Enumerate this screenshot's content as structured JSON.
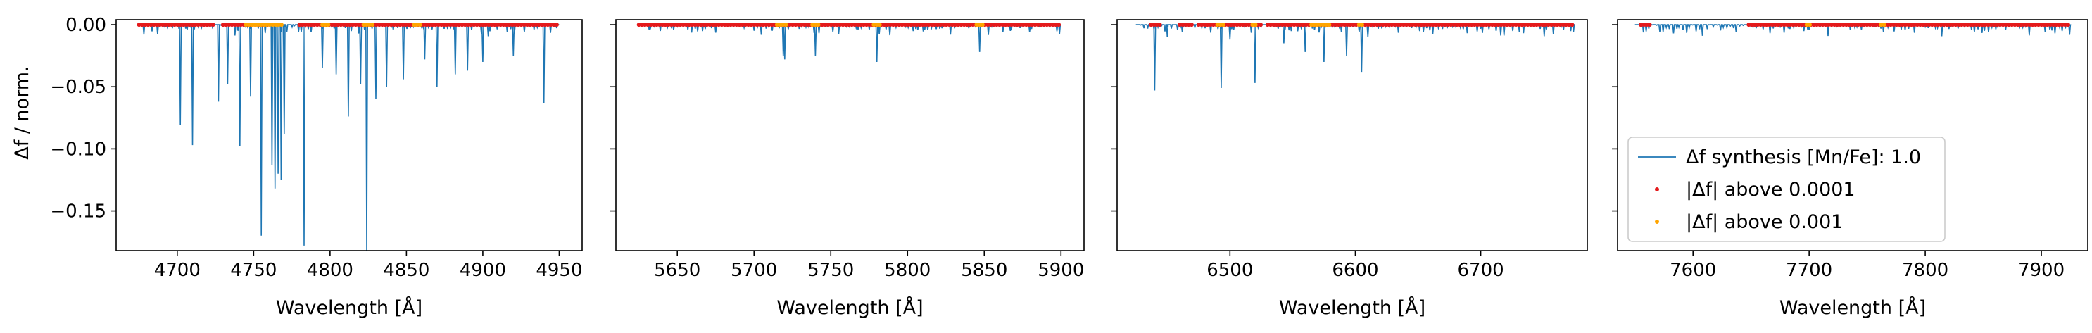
{
  "figure": {
    "ylabel": "Δf / norm.",
    "xlabel": "Wavelength [Å]"
  },
  "colors": {
    "synthesis_line": "#1f77b4",
    "above_0_0001": "#e41a1c",
    "above_0_001": "#ffa500",
    "axes": "#000000"
  },
  "legend": {
    "entries": [
      {
        "label": "Δf synthesis [Mn/Fe]: 1.0",
        "marker": "line",
        "color": "#1f77b4"
      },
      {
        "label": "|Δf| above 0.0001",
        "marker": "dot",
        "color": "#e41a1c"
      },
      {
        "label": "|Δf| above 0.001",
        "marker": "dot",
        "color": "#ffa500"
      }
    ],
    "placement": "lower-left of panel 4"
  },
  "chart_data": [
    {
      "type": "line",
      "panel": 1,
      "xlabel": "Wavelength [Å]",
      "ylabel": "Δf / norm.",
      "xlim": [
        4660,
        4965
      ],
      "ylim": [
        -0.182,
        0.004
      ],
      "xticks": [
        4700,
        4750,
        4800,
        4850,
        4900,
        4950
      ],
      "yticks": [
        0.0,
        -0.05,
        -0.1,
        -0.15
      ],
      "ytick_labels": [
        "0.00",
        "−0.05",
        "−0.10",
        "−0.15"
      ],
      "x_range": [
        4675,
        4950
      ],
      "lines": [
        [
          4702,
          -0.081
        ],
        [
          4710,
          -0.097
        ],
        [
          4727,
          -0.062
        ],
        [
          4733,
          -0.048
        ],
        [
          4741,
          -0.098
        ],
        [
          4748,
          -0.058
        ],
        [
          4755,
          -0.17
        ],
        [
          4762,
          -0.113
        ],
        [
          4764,
          -0.132
        ],
        [
          4766,
          -0.12
        ],
        [
          4768,
          -0.125
        ],
        [
          4770,
          -0.088
        ],
        [
          4783,
          -0.178
        ],
        [
          4795,
          -0.035
        ],
        [
          4804,
          -0.04
        ],
        [
          4812,
          -0.074
        ],
        [
          4820,
          -0.048
        ],
        [
          4824,
          -0.182
        ],
        [
          4830,
          -0.06
        ],
        [
          4837,
          -0.05
        ],
        [
          4848,
          -0.044
        ],
        [
          4862,
          -0.028
        ],
        [
          4870,
          -0.05
        ],
        [
          4882,
          -0.04
        ],
        [
          4890,
          -0.037
        ],
        [
          4900,
          -0.03
        ],
        [
          4920,
          -0.025
        ],
        [
          4940,
          -0.063
        ]
      ],
      "above_0_0001_ranges": [
        [
          4675,
          4725
        ],
        [
          4730,
          4760
        ],
        [
          4780,
          4950
        ]
      ],
      "above_0_001_ranges": [
        [
          4745,
          4770
        ],
        [
          4795,
          4800
        ],
        [
          4822,
          4828
        ],
        [
          4855,
          4860
        ]
      ]
    },
    {
      "type": "line",
      "panel": 2,
      "xlabel": "Wavelength [Å]",
      "ylim": [
        -0.182,
        0.004
      ],
      "xlim": [
        5610,
        5915
      ],
      "xticks": [
        5650,
        5700,
        5750,
        5800,
        5850,
        5900
      ],
      "x_range": [
        5625,
        5900
      ],
      "lines": [
        [
          5719,
          -0.025
        ],
        [
          5720,
          -0.028
        ],
        [
          5740,
          -0.025
        ],
        [
          5780,
          -0.03
        ],
        [
          5828,
          -0.008
        ],
        [
          5847,
          -0.022
        ],
        [
          5867,
          -0.005
        ]
      ],
      "above_0_0001_ranges": [
        [
          5625,
          5900
        ]
      ],
      "above_0_001_ranges": [
        [
          5715,
          5722
        ],
        [
          5738,
          5742
        ],
        [
          5778,
          5782
        ],
        [
          5845,
          5849
        ]
      ]
    },
    {
      "type": "line",
      "panel": 3,
      "xlabel": "Wavelength [Å]",
      "ylim": [
        -0.182,
        0.004
      ],
      "xlim": [
        6410,
        6785
      ],
      "xticks": [
        6500,
        6600,
        6700
      ],
      "x_range": [
        6425,
        6775
      ],
      "lines": [
        [
          6440,
          -0.053
        ],
        [
          6450,
          -0.01
        ],
        [
          6462,
          -0.006
        ],
        [
          6493,
          -0.051
        ],
        [
          6500,
          -0.012
        ],
        [
          6520,
          -0.047
        ],
        [
          6543,
          -0.015
        ],
        [
          6560,
          -0.022
        ],
        [
          6575,
          -0.03
        ],
        [
          6593,
          -0.025
        ],
        [
          6605,
          -0.038
        ],
        [
          6610,
          -0.01
        ]
      ],
      "above_0_0001_ranges": [
        [
          6437,
          6445
        ],
        [
          6460,
          6470
        ],
        [
          6475,
          6525
        ],
        [
          6530,
          6775
        ]
      ],
      "above_0_001_ranges": [
        [
          6490,
          6496
        ],
        [
          6518,
          6522
        ],
        [
          6565,
          6580
        ],
        [
          6603,
          6607
        ]
      ]
    },
    {
      "type": "line",
      "panel": 4,
      "xlabel": "Wavelength [Å]",
      "ylim": [
        -0.182,
        0.004
      ],
      "xlim": [
        7535,
        7940
      ],
      "xticks": [
        7600,
        7700,
        7800,
        7900
      ],
      "x_range": [
        7550,
        7925
      ],
      "lines": [
        [
          7682,
          -0.003
        ],
        [
          7700,
          -0.004
        ],
        [
          7745,
          -0.004
        ],
        [
          7764,
          -0.006
        ]
      ],
      "above_0_0001_ranges": [
        [
          7555,
          7565
        ],
        [
          7648,
          7925
        ]
      ],
      "above_0_001_ranges": [
        [
          7698,
          7702
        ],
        [
          7762,
          7766
        ]
      ]
    }
  ]
}
